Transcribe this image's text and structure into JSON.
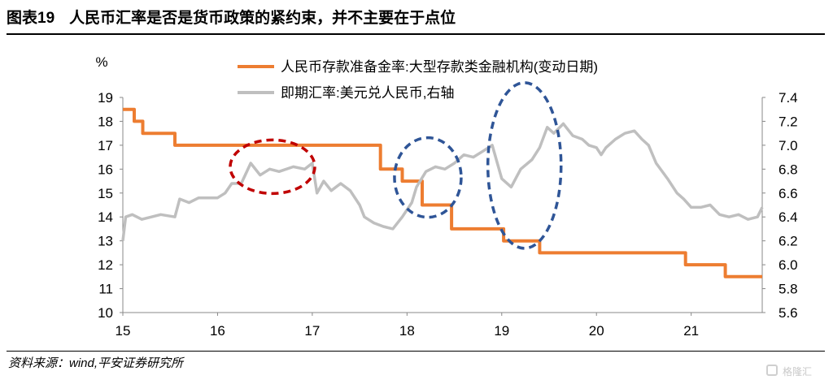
{
  "header": {
    "figure_label": "图表19",
    "title": "人民币汇率是否是货币政策的紧约束，并不主要在于点位"
  },
  "footer": {
    "source": "资料来源：wind,平安证券研究所",
    "watermark": "格隆汇"
  },
  "chart_data": {
    "type": "line",
    "title": "人民币汇率是否是货币政策的紧约束，并不主要在于点位",
    "left_axis": {
      "unit_label": "%",
      "range": [
        10,
        19
      ],
      "ticks": [
        "19",
        "18",
        "17",
        "16",
        "15",
        "14",
        "13",
        "12",
        "11",
        "10"
      ]
    },
    "right_axis": {
      "range": [
        5.6,
        7.4
      ],
      "ticks": [
        "7.4",
        "7.2",
        "7.0",
        "6.8",
        "6.6",
        "6.4",
        "6.2",
        "6.0",
        "5.8",
        "5.6"
      ]
    },
    "x_axis": {
      "range": [
        2015,
        2021.75
      ],
      "tick_values": [
        2015,
        2016,
        2017,
        2018,
        2019,
        2020,
        2021
      ],
      "tick_labels": [
        "15",
        "16",
        "17",
        "18",
        "19",
        "20",
        "21"
      ]
    },
    "legend": {
      "position": "top-right"
    },
    "grid": false,
    "series": [
      {
        "name": "人民币存款准备金率:大型存款类金融机构(变动日期)",
        "axis": "left",
        "color": "#ED7D31",
        "step": true,
        "points": [
          [
            2015.0,
            18.5
          ],
          [
            2015.12,
            18.0
          ],
          [
            2015.21,
            17.5
          ],
          [
            2015.55,
            17.0
          ],
          [
            2017.72,
            16.0
          ],
          [
            2017.95,
            15.5
          ],
          [
            2018.16,
            14.5
          ],
          [
            2018.47,
            13.5
          ],
          [
            2019.02,
            13.0
          ],
          [
            2019.4,
            12.5
          ],
          [
            2020.94,
            12.0
          ],
          [
            2021.36,
            11.5
          ],
          [
            2021.75,
            11.5
          ]
        ]
      },
      {
        "name": "即期汇率:美元兑人民币,右轴",
        "axis": "right",
        "color": "#BFBFBF",
        "points": [
          [
            2015.0,
            6.2
          ],
          [
            2015.03,
            6.4
          ],
          [
            2015.1,
            6.42
          ],
          [
            2015.2,
            6.38
          ],
          [
            2015.4,
            6.42
          ],
          [
            2015.55,
            6.4
          ],
          [
            2015.6,
            6.55
          ],
          [
            2015.7,
            6.52
          ],
          [
            2015.8,
            6.56
          ],
          [
            2016.0,
            6.56
          ],
          [
            2016.08,
            6.6
          ],
          [
            2016.15,
            6.68
          ],
          [
            2016.25,
            6.68
          ],
          [
            2016.35,
            6.85
          ],
          [
            2016.45,
            6.75
          ],
          [
            2016.55,
            6.8
          ],
          [
            2016.65,
            6.78
          ],
          [
            2016.8,
            6.82
          ],
          [
            2016.92,
            6.8
          ],
          [
            2017.0,
            6.85
          ],
          [
            2017.05,
            6.6
          ],
          [
            2017.12,
            6.7
          ],
          [
            2017.2,
            6.62
          ],
          [
            2017.3,
            6.68
          ],
          [
            2017.4,
            6.62
          ],
          [
            2017.5,
            6.5
          ],
          [
            2017.55,
            6.4
          ],
          [
            2017.65,
            6.35
          ],
          [
            2017.75,
            6.32
          ],
          [
            2017.85,
            6.3
          ],
          [
            2017.95,
            6.4
          ],
          [
            2018.05,
            6.52
          ],
          [
            2018.1,
            6.65
          ],
          [
            2018.2,
            6.78
          ],
          [
            2018.3,
            6.82
          ],
          [
            2018.4,
            6.8
          ],
          [
            2018.5,
            6.85
          ],
          [
            2018.6,
            6.92
          ],
          [
            2018.7,
            6.9
          ],
          [
            2018.8,
            6.95
          ],
          [
            2018.9,
            7.0
          ],
          [
            2019.0,
            6.72
          ],
          [
            2019.1,
            6.65
          ],
          [
            2019.2,
            6.8
          ],
          [
            2019.32,
            6.88
          ],
          [
            2019.4,
            6.98
          ],
          [
            2019.48,
            7.15
          ],
          [
            2019.55,
            7.1
          ],
          [
            2019.65,
            7.18
          ],
          [
            2019.75,
            7.08
          ],
          [
            2019.85,
            7.05
          ],
          [
            2019.92,
            7.0
          ],
          [
            2020.0,
            6.98
          ],
          [
            2020.05,
            6.92
          ],
          [
            2020.1,
            6.98
          ],
          [
            2020.2,
            7.05
          ],
          [
            2020.3,
            7.1
          ],
          [
            2020.4,
            7.12
          ],
          [
            2020.48,
            7.05
          ],
          [
            2020.55,
            7.0
          ],
          [
            2020.63,
            6.85
          ],
          [
            2020.75,
            6.72
          ],
          [
            2020.85,
            6.6
          ],
          [
            2020.92,
            6.55
          ],
          [
            2021.0,
            6.48
          ],
          [
            2021.1,
            6.48
          ],
          [
            2021.2,
            6.5
          ],
          [
            2021.3,
            6.42
          ],
          [
            2021.4,
            6.4
          ],
          [
            2021.5,
            6.42
          ],
          [
            2021.6,
            6.38
          ],
          [
            2021.7,
            6.4
          ],
          [
            2021.75,
            6.48
          ]
        ]
      }
    ],
    "highlights": [
      {
        "center": [
          2016.58,
          6.82
        ],
        "color": "#C00000"
      },
      {
        "center": [
          2018.22,
          6.73
        ],
        "color": "#2F5597"
      },
      {
        "center": [
          2019.24,
          6.83
        ],
        "color": "#2F5597"
      }
    ]
  }
}
